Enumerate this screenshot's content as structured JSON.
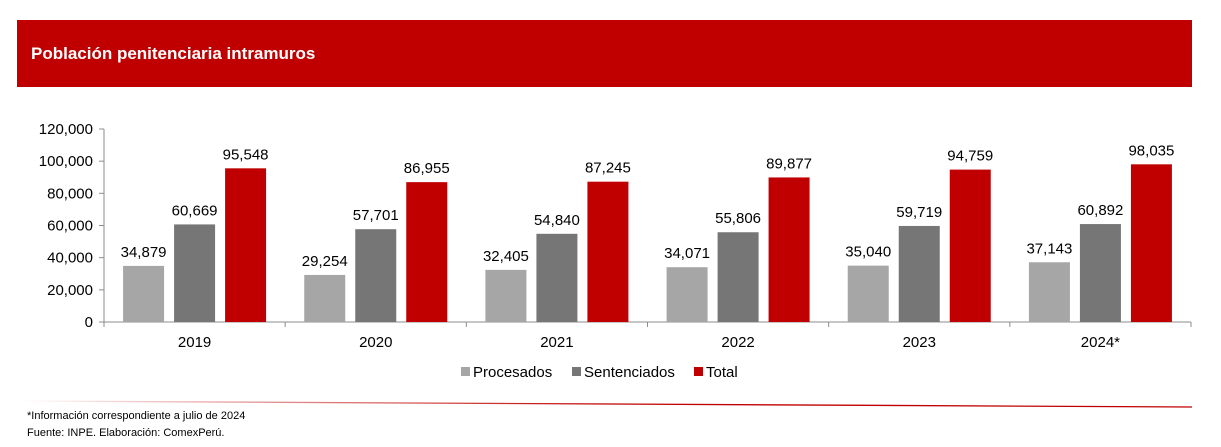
{
  "header": {
    "title": "Población penitenciaria intramuros"
  },
  "chart_data": {
    "type": "bar",
    "title": "Población penitenciaria intramuros",
    "xlabel": "",
    "ylabel": "",
    "categories": [
      "2019",
      "2020",
      "2021",
      "2022",
      "2023",
      "2024*"
    ],
    "ylim": [
      0,
      120000
    ],
    "yticks": [
      0,
      20000,
      40000,
      60000,
      80000,
      100000,
      120000
    ],
    "ytick_labels": [
      "0",
      "20,000",
      "40,000",
      "60,000",
      "80,000",
      "100,000",
      "120,000"
    ],
    "grid": false,
    "legend_position": "bottom",
    "series": [
      {
        "name": "Procesados",
        "color": "#a6a6a6",
        "values": [
          34879,
          29254,
          32405,
          34071,
          35040,
          37143
        ],
        "labels": [
          "34,879",
          "29,254",
          "32,405",
          "34,071",
          "35,040",
          "37,143"
        ]
      },
      {
        "name": "Sentenciados",
        "color": "#767676",
        "values": [
          60669,
          57701,
          54840,
          55806,
          59719,
          60892
        ],
        "labels": [
          "60,669",
          "57,701",
          "54,840",
          "55,806",
          "59,719",
          "60,892"
        ]
      },
      {
        "name": "Total",
        "color": "#c00000",
        "values": [
          95548,
          86955,
          87245,
          89877,
          94759,
          98035
        ],
        "labels": [
          "95,548",
          "86,955",
          "87,245",
          "89,877",
          "94,759",
          "98,035"
        ]
      }
    ]
  },
  "footnotes": {
    "note": "*Información  correspondiente  a julio de 2024",
    "source": "Fuente: INPE. Elaboración: ComexPerú."
  }
}
